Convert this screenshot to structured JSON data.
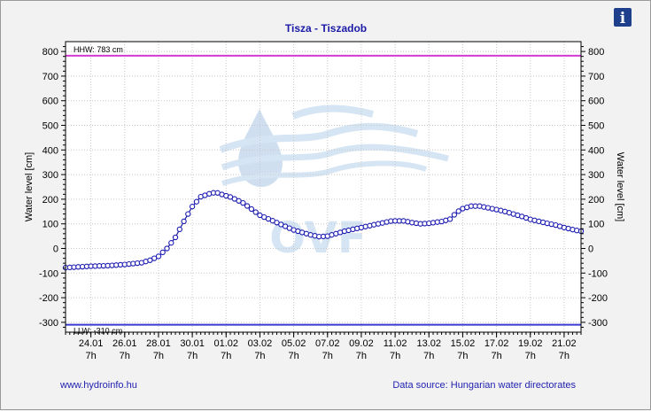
{
  "info_icon": {
    "name": "info-icon",
    "glyph": "i",
    "color": "#1e3f8c"
  },
  "footer": {
    "left": "www.hydroinfo.hu",
    "right": "Data source: Hungarian water directorates"
  },
  "watermark": {
    "text": "OVF"
  },
  "chart_data": {
    "type": "line",
    "title": "Tisza - Tiszadob",
    "ylabel": "Water level [cm]",
    "ylabel_right": "Water level [cm]",
    "ylim": [
      -340,
      840
    ],
    "yticks": [
      800,
      700,
      600,
      500,
      400,
      300,
      200,
      100,
      0,
      -100,
      -200,
      -300
    ],
    "x_domain_days": [
      22.5,
      53.0
    ],
    "xticks": [
      {
        "day": 24,
        "date": "24.01",
        "time": "7h"
      },
      {
        "day": 26,
        "date": "26.01",
        "time": "7h"
      },
      {
        "day": 28,
        "date": "28.01",
        "time": "7h"
      },
      {
        "day": 30,
        "date": "30.01",
        "time": "7h"
      },
      {
        "day": 32,
        "date": "01.02",
        "time": "7h"
      },
      {
        "day": 34,
        "date": "03.02",
        "time": "7h"
      },
      {
        "day": 36,
        "date": "05.02",
        "time": "7h"
      },
      {
        "day": 38,
        "date": "07.02",
        "time": "7h"
      },
      {
        "day": 40,
        "date": "09.02",
        "time": "7h"
      },
      {
        "day": 42,
        "date": "11.02",
        "time": "7h"
      },
      {
        "day": 44,
        "date": "13.02",
        "time": "7h"
      },
      {
        "day": 46,
        "date": "15.02",
        "time": "7h"
      },
      {
        "day": 48,
        "date": "17.02",
        "time": "7h"
      },
      {
        "day": 50,
        "date": "19.02",
        "time": "7h"
      },
      {
        "day": 52,
        "date": "21.02",
        "time": "7h"
      }
    ],
    "reference_lines": [
      {
        "label": "HHW: 783 cm",
        "value": 783,
        "color": "#d23ad2"
      },
      {
        "label": "LLW: -310 cm",
        "value": -310,
        "color": "#3a3ad2"
      }
    ],
    "grid": true,
    "series": [
      {
        "line_color": "#1a1a9e",
        "marker_color": "#1a1ab0",
        "keypoints": [
          [
            22.5,
            -78
          ],
          [
            24,
            -72
          ],
          [
            25,
            -70
          ],
          [
            26,
            -65
          ],
          [
            27,
            -58
          ],
          [
            27.5,
            -48
          ],
          [
            28,
            -32
          ],
          [
            28.5,
            0
          ],
          [
            29,
            45
          ],
          [
            29.5,
            110
          ],
          [
            30,
            170
          ],
          [
            30.5,
            210
          ],
          [
            31,
            222
          ],
          [
            31.4,
            228
          ],
          [
            31.8,
            218
          ],
          [
            32.3,
            208
          ],
          [
            33,
            185
          ],
          [
            33.5,
            160
          ],
          [
            34,
            135
          ],
          [
            35,
            105
          ],
          [
            36,
            75
          ],
          [
            37,
            55
          ],
          [
            37.5,
            48
          ],
          [
            38,
            50
          ],
          [
            39,
            70
          ],
          [
            40,
            85
          ],
          [
            41,
            100
          ],
          [
            41.8,
            112
          ],
          [
            42.5,
            112
          ],
          [
            43,
            105
          ],
          [
            43.5,
            100
          ],
          [
            44,
            102
          ],
          [
            44.8,
            110
          ],
          [
            45.3,
            120
          ],
          [
            45.6,
            145
          ],
          [
            46,
            162
          ],
          [
            46.5,
            172
          ],
          [
            47,
            172
          ],
          [
            47.5,
            165
          ],
          [
            48,
            158
          ],
          [
            48.5,
            150
          ],
          [
            49,
            140
          ],
          [
            49.5,
            130
          ],
          [
            50,
            118
          ],
          [
            50.5,
            110
          ],
          [
            51,
            102
          ],
          [
            51.5,
            95
          ],
          [
            52,
            85
          ],
          [
            52.6,
            75
          ],
          [
            53,
            70
          ]
        ]
      }
    ]
  }
}
